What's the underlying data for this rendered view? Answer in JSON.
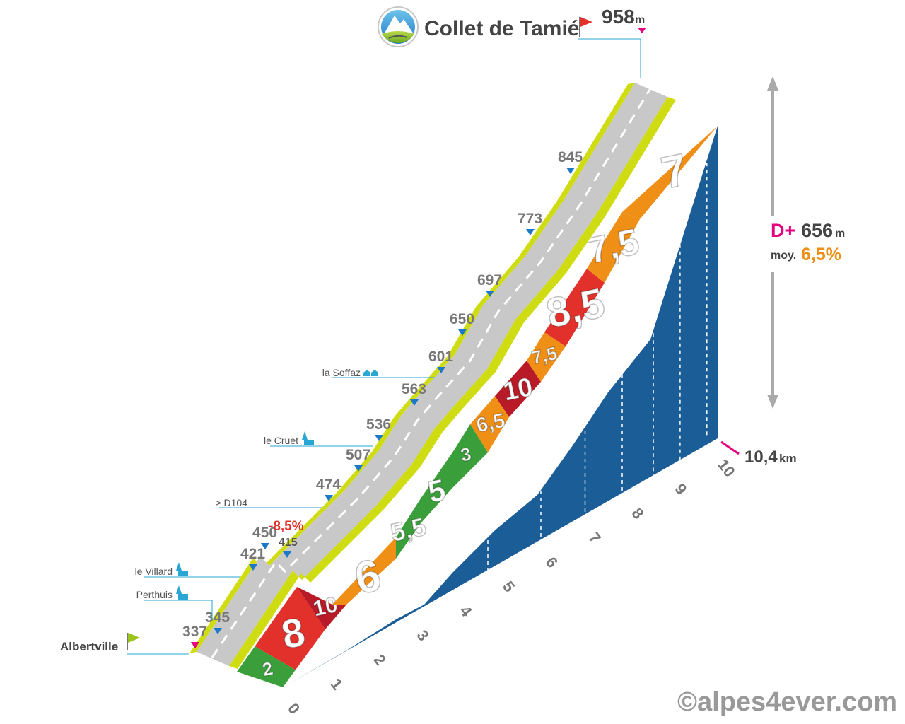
{
  "colors": {
    "wall": "#1b5d97",
    "road": "#c8c8c8",
    "verge": "#cfdc12",
    "green": "#3a9f3a",
    "orange": "#ef8f16",
    "red": "#e2302b",
    "darkred": "#b81b27",
    "pink": "#e6007e",
    "blue_marker": "#1e78c8",
    "cyan": "#29a6d4",
    "text_grey": "#777777",
    "text_dark": "#444444"
  },
  "header": {
    "pass_name": "Collet de Tamié",
    "summit_altitude": "958",
    "summit_unit": "m",
    "logo_icon": "mountain-logo-icon",
    "summit_flag_icon": "red-flag-icon"
  },
  "start": {
    "town": "Albertville",
    "flag_icon": "green-flag-icon"
  },
  "stats": {
    "gain_label": "D+",
    "gain_value": "656",
    "gain_unit": "m",
    "avg_label": "moy.",
    "avg_value": "6,5%",
    "distance_value": "10,4",
    "distance_unit": "km"
  },
  "descent_note": "-8,5%",
  "places": [
    {
      "name": "le Villard",
      "icon": "church-icon"
    },
    {
      "name": "Perthuis",
      "icon": "church-icon"
    },
    {
      "name": "> D104",
      "icon": ""
    },
    {
      "name": "le Cruet",
      "icon": "church-icon"
    },
    {
      "name": "la Soffaz",
      "icon": "houses-icon"
    }
  ],
  "watermark": "©alpes4ever.com",
  "chart_data": {
    "type": "area",
    "title": "Collet de Tamié",
    "xlabel": "km",
    "ylabel": "m",
    "x_ticks": [
      "0",
      "1",
      "2",
      "3",
      "4",
      "5",
      "6",
      "7",
      "8",
      "9",
      "10"
    ],
    "xlim": [
      0,
      10.4
    ],
    "altitude_profile": [
      {
        "km": 0,
        "alt": 337
      },
      {
        "km": 0.3,
        "alt": 345
      },
      {
        "km": 1.0,
        "alt": 421
      },
      {
        "km": 1.2,
        "alt": 450
      },
      {
        "km": 1.5,
        "alt": 415
      },
      {
        "km": 2.5,
        "alt": 474
      },
      {
        "km": 3.0,
        "alt": 507
      },
      {
        "km": 3.5,
        "alt": 536
      },
      {
        "km": 4.0,
        "alt": 563
      },
      {
        "km": 4.5,
        "alt": 601
      },
      {
        "km": 5.2,
        "alt": 650
      },
      {
        "km": 6.0,
        "alt": 697
      },
      {
        "km": 7.0,
        "alt": 773
      },
      {
        "km": 8.0,
        "alt": 845
      },
      {
        "km": 10.4,
        "alt": 958
      }
    ],
    "altitude_labels": [
      "337",
      "345",
      "421",
      "450",
      "415",
      "474",
      "507",
      "536",
      "563",
      "601",
      "650",
      "697",
      "773",
      "845"
    ],
    "gradient_segments": [
      {
        "from_km": 0,
        "to_km": 0.3,
        "grade": "2",
        "color": "green"
      },
      {
        "from_km": 0.3,
        "to_km": 1.0,
        "grade": "8",
        "color": "red"
      },
      {
        "from_km": 1.0,
        "to_km": 1.3,
        "grade": "10",
        "color": "darkred"
      },
      {
        "from_km": 1.3,
        "to_km": 2.5,
        "grade": "6",
        "color": "orange"
      },
      {
        "from_km": 2.5,
        "to_km": 3.0,
        "grade": "5,5",
        "color": "green"
      },
      {
        "from_km": 3.0,
        "to_km": 3.5,
        "grade": "5",
        "color": "green"
      },
      {
        "from_km": 3.5,
        "to_km": 4.0,
        "grade": "3",
        "color": "green"
      },
      {
        "from_km": 4.0,
        "to_km": 4.5,
        "grade": "6,5",
        "color": "orange"
      },
      {
        "from_km": 4.5,
        "to_km": 5.0,
        "grade": "10",
        "color": "darkred"
      },
      {
        "from_km": 5.0,
        "to_km": 5.5,
        "grade": "7,5",
        "color": "orange"
      },
      {
        "from_km": 5.5,
        "to_km": 6.5,
        "grade": "8,5",
        "color": "red"
      },
      {
        "from_km": 6.5,
        "to_km": 7.5,
        "grade": "7,5",
        "color": "orange"
      },
      {
        "from_km": 7.5,
        "to_km": 10.4,
        "grade": "7",
        "color": "orange"
      }
    ]
  }
}
